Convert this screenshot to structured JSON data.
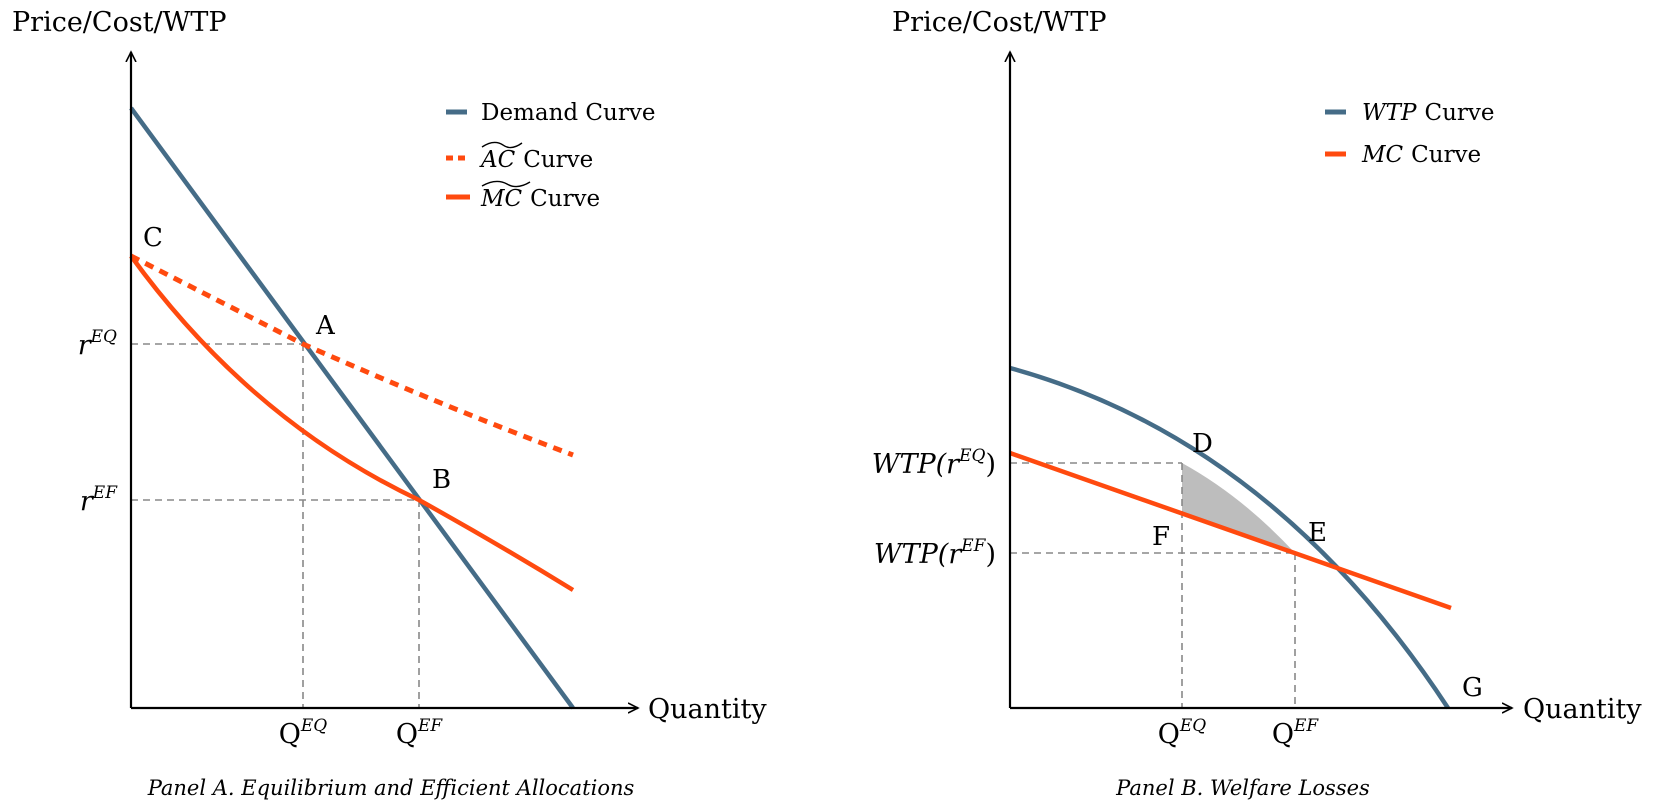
{
  "colors": {
    "demand": "#456c87",
    "cost": "#ff4a0f",
    "guide": "#888888",
    "shade": "#bdbdbd",
    "axis": "#000000"
  },
  "panel_a": {
    "y_axis_label": "Price/Cost/WTP",
    "x_axis_label": "Quantity",
    "caption": "Panel A. Equilibrium and Efficient Allocations",
    "points": {
      "a": "A",
      "b": "B",
      "c": "C"
    },
    "ticks": {
      "y_eq_base": "r",
      "y_eq_sup": "EQ",
      "y_ef_base": "r",
      "y_ef_sup": "EF",
      "x_eq_base": "Q",
      "x_eq_sup": "EQ",
      "x_ef_base": "Q",
      "x_ef_sup": "EF"
    },
    "legend": {
      "demand": "Demand Curve",
      "ac_sym": "AC",
      "ac_word": "Curve",
      "mc_sym": "MC",
      "mc_word": "Curve"
    }
  },
  "panel_b": {
    "y_axis_label": "Price/Cost/WTP",
    "x_axis_label": "Quantity",
    "caption": "Panel B. Welfare Losses",
    "points": {
      "d": "D",
      "e": "E",
      "f": "F",
      "g": "G"
    },
    "ticks": {
      "y_eq_pre": "WTP(r",
      "y_eq_sup": "EQ",
      "y_eq_post": ")",
      "y_ef_pre": "WTP(r",
      "y_ef_sup": "EF",
      "y_ef_post": ")",
      "x_eq_base": "Q",
      "x_eq_sup": "EQ",
      "x_ef_base": "Q",
      "x_ef_sup": "EF"
    },
    "legend": {
      "wtp_sym": "WTP",
      "wtp_word": "Curve",
      "mc_sym": "MC",
      "mc_word": "Curve"
    }
  }
}
